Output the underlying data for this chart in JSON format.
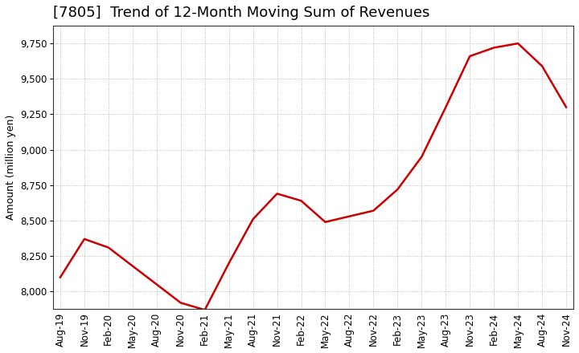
{
  "title": "[7805]  Trend of 12-Month Moving Sum of Revenues",
  "ylabel": "Amount (million yen)",
  "line_color": "#cc0000",
  "line_width": 1.8,
  "background_color": "#ffffff",
  "grid_color": "#999999",
  "ylim": [
    7875,
    9875
  ],
  "yticks": [
    8000,
    8250,
    8500,
    8750,
    9000,
    9250,
    9500,
    9750
  ],
  "values": [
    8100,
    8370,
    8310,
    8180,
    8050,
    7920,
    7870,
    8200,
    8510,
    8690,
    8640,
    8490,
    8530,
    8570,
    8720,
    8950,
    9300,
    9660,
    9720,
    9750,
    9590,
    9300
  ],
  "xtick_labels": [
    "Aug-19",
    "Nov-19",
    "Feb-20",
    "May-20",
    "Aug-20",
    "Nov-20",
    "Feb-21",
    "May-21",
    "Aug-21",
    "Nov-21",
    "Feb-22",
    "May-22",
    "Aug-22",
    "Nov-22",
    "Feb-23",
    "May-23",
    "Aug-23",
    "Nov-23",
    "Feb-24",
    "May-24",
    "Aug-24",
    "Nov-24"
  ],
  "title_fontsize": 13,
  "ylabel_fontsize": 9,
  "tick_fontsize": 8.5
}
